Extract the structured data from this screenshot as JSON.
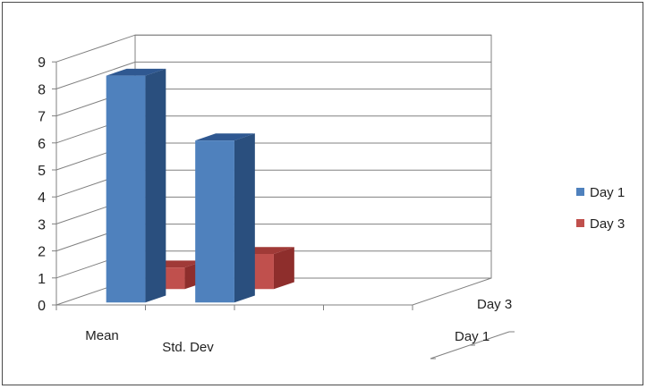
{
  "chart_data": {
    "type": "bar",
    "categories": [
      "Mean",
      "Std. Dev"
    ],
    "series": [
      {
        "name": "Day 1",
        "values": [
          8.4,
          6.0
        ]
      },
      {
        "name": "Day 3",
        "values": [
          0.8,
          1.3
        ]
      }
    ],
    "depth_labels": [
      "Day 1",
      "Day 3"
    ],
    "y_ticks": [
      "0",
      "1",
      "2",
      "3",
      "4",
      "5",
      "6",
      "7",
      "8",
      "9"
    ],
    "ylim": [
      0,
      9
    ],
    "grid": true,
    "legend_position": "right",
    "title": "",
    "xlabel": "",
    "ylabel": "",
    "colors": {
      "day1_front": "#4F81BD",
      "day1_top": "#2F5891",
      "day1_side": "#2A4F7E",
      "day3_front": "#C0504D",
      "day3_top": "#A03A37",
      "day3_side": "#8E2E2C",
      "grid": "#808080",
      "axis": "#808080"
    }
  }
}
